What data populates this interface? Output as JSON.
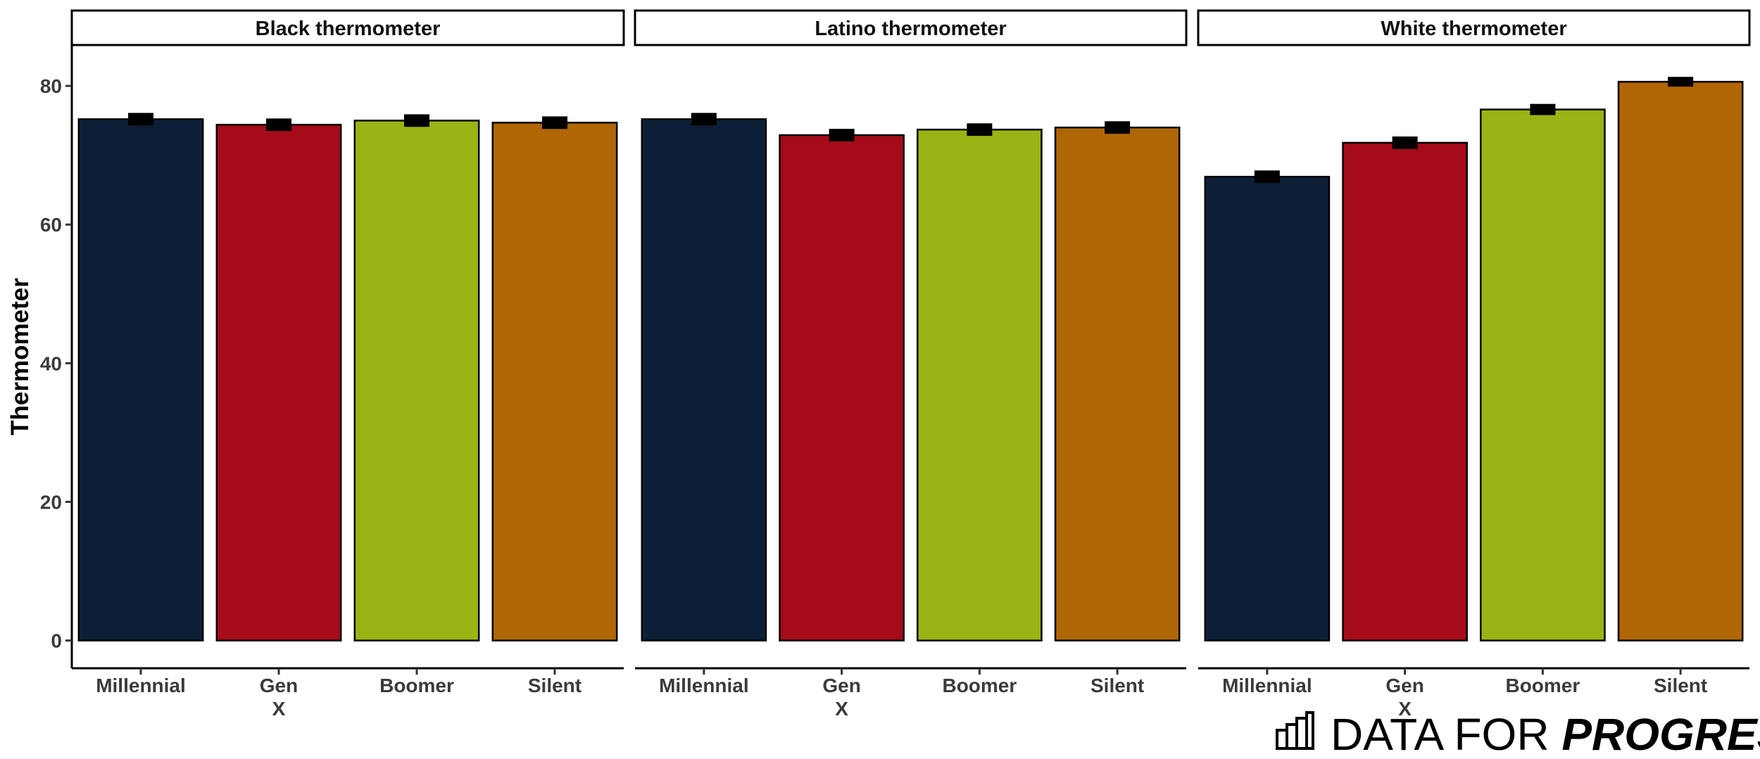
{
  "chart_data": {
    "type": "bar",
    "ylabel": "Thermometer",
    "ylim": [
      -4,
      86
    ],
    "yticks": [
      0,
      20,
      40,
      60,
      80
    ],
    "ytick_labels": [
      "0",
      "20",
      "40",
      "60",
      "80"
    ],
    "categories": [
      "Millennial",
      "Gen X",
      "Boomer",
      "Silent"
    ],
    "category_labels": [
      [
        "Millennial"
      ],
      [
        "Gen",
        "X"
      ],
      [
        "Boomer"
      ],
      [
        "Silent"
      ]
    ],
    "colors": [
      "#0d1f38",
      "#a50b18",
      "#99b414",
      "#b06604"
    ],
    "grid": false,
    "legend": "none",
    "panels": [
      {
        "title": "Black thermometer",
        "values": [
          75.2,
          74.4,
          75.0,
          74.7
        ],
        "errors": [
          0.6,
          0.6,
          0.6,
          0.6
        ]
      },
      {
        "title": "Latino thermometer",
        "values": [
          75.2,
          72.9,
          73.7,
          74.0
        ],
        "errors": [
          0.6,
          0.6,
          0.6,
          0.6
        ]
      },
      {
        "title": "White thermometer",
        "values": [
          66.9,
          71.8,
          76.6,
          80.6
        ],
        "errors": [
          0.6,
          0.6,
          0.5,
          0.4
        ]
      }
    ]
  },
  "logo": {
    "text_regular": "DATA FOR ",
    "text_bold": "PROGRESS",
    "icon": "bar-chart-icon"
  }
}
